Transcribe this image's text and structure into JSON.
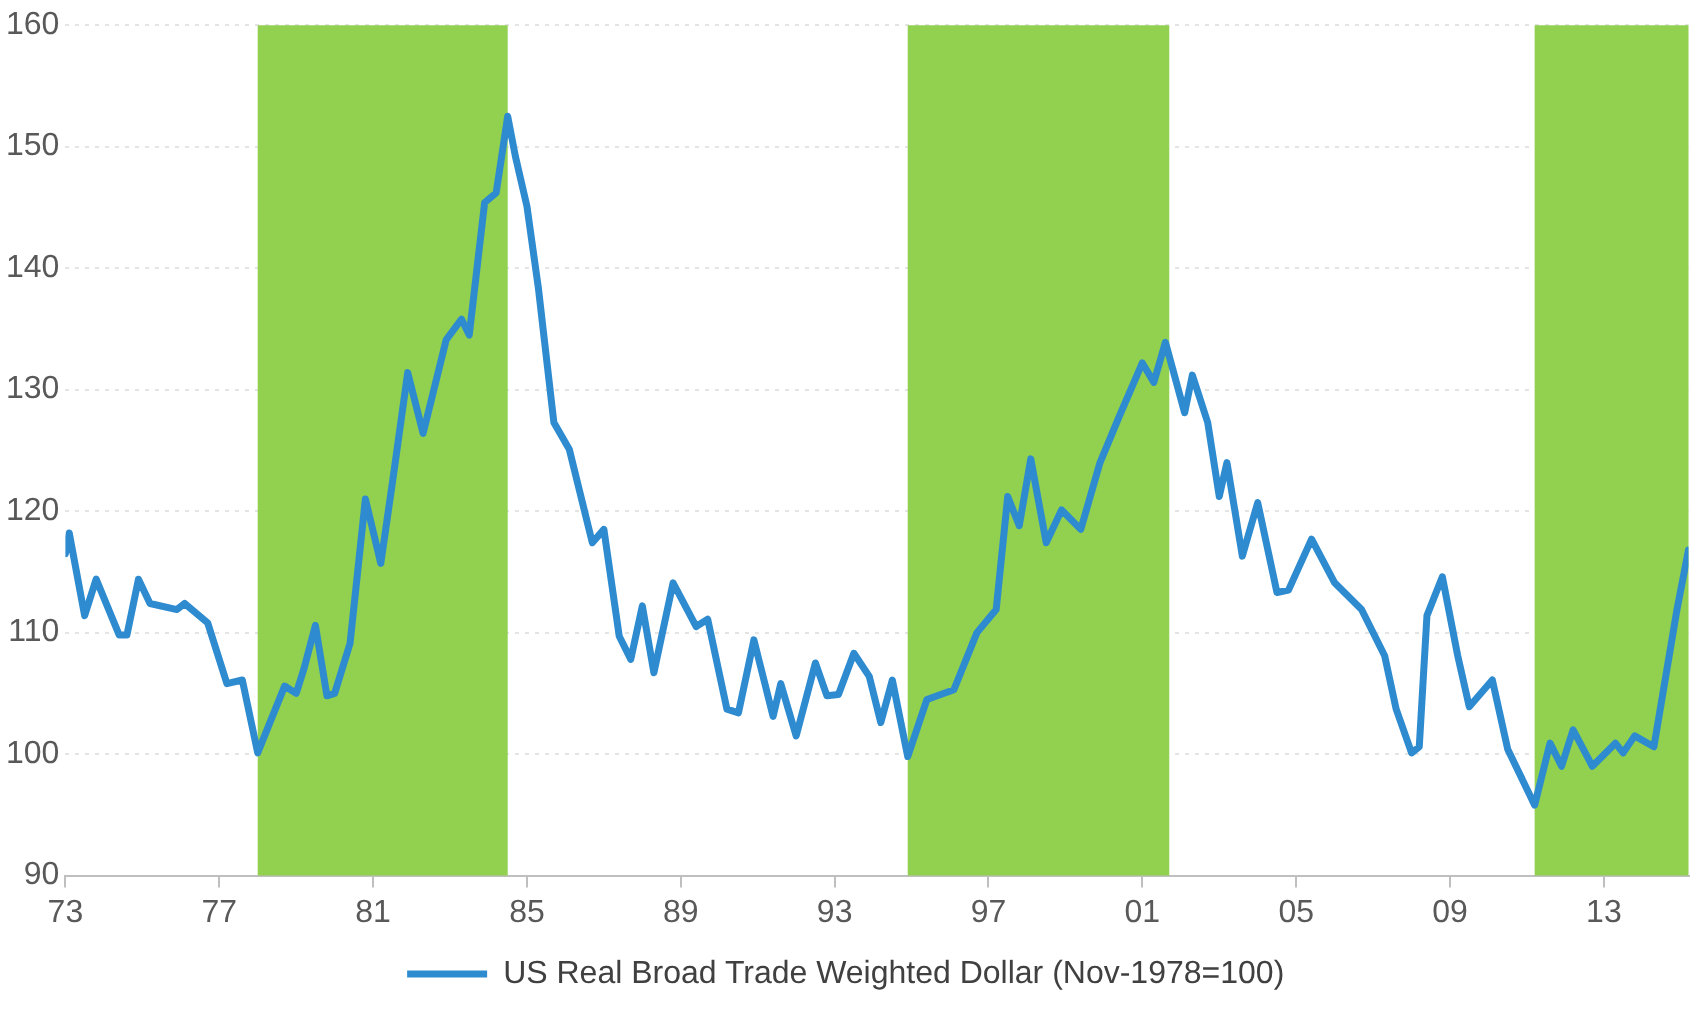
{
  "chart_data": {
    "type": "line",
    "x": [
      1973.0,
      1973.1,
      1973.5,
      1973.8,
      1974.4,
      1974.6,
      1974.9,
      1975.2,
      1975.9,
      1976.1,
      1976.7,
      1977.2,
      1977.6,
      1978.0,
      1978.7,
      1979.0,
      1979.2,
      1979.5,
      1979.8,
      1980.0,
      1980.4,
      1980.8,
      1981.2,
      1981.5,
      1981.9,
      1982.3,
      1982.9,
      1983.3,
      1983.5,
      1983.9,
      1984.2,
      1984.5,
      1984.7,
      1985.0,
      1985.3,
      1985.7,
      1986.1,
      1986.7,
      1987.0,
      1987.4,
      1987.7,
      1988.0,
      1988.3,
      1988.8,
      1989.4,
      1989.7,
      1990.2,
      1990.5,
      1990.9,
      1991.4,
      1991.6,
      1992.0,
      1992.5,
      1992.8,
      1993.1,
      1993.5,
      1993.9,
      1994.2,
      1994.5,
      1994.9,
      1995.4,
      1996.1,
      1996.7,
      1997.2,
      1997.5,
      1997.8,
      1998.1,
      1998.5,
      1998.9,
      1999.4,
      1999.9,
      2000.4,
      2001.0,
      2001.3,
      2001.6,
      2002.1,
      2002.3,
      2002.7,
      2003.0,
      2003.2,
      2003.6,
      2004.0,
      2004.5,
      2004.8,
      2005.4,
      2006.0,
      2006.7,
      2007.3,
      2007.6,
      2008.0,
      2008.2,
      2008.4,
      2008.8,
      2009.2,
      2009.5,
      2010.1,
      2010.5,
      2011.2,
      2011.6,
      2011.9,
      2012.2,
      2012.7,
      2013.3,
      2013.5,
      2013.8,
      2014.3,
      2014.9,
      2015.2
    ],
    "series": [
      {
        "name": "US Real Broad Trade Weighted Dollar (Nov-1978=100)",
        "color": "#2e8bcf",
        "values": [
          116.5,
          118.2,
          111.4,
          114.4,
          109.8,
          109.8,
          114.4,
          112.4,
          111.9,
          112.4,
          110.8,
          105.8,
          106.1,
          100.1,
          105.6,
          105.0,
          107.0,
          110.6,
          104.8,
          105.0,
          109.1,
          121.0,
          115.7,
          122.3,
          131.4,
          126.4,
          134.1,
          135.8,
          134.5,
          145.4,
          146.2,
          152.5,
          149.2,
          145.1,
          138.3,
          127.3,
          125.1,
          117.4,
          118.5,
          109.7,
          107.8,
          112.2,
          106.7,
          114.1,
          110.5,
          111.1,
          103.7,
          103.4,
          109.4,
          103.1,
          105.8,
          101.5,
          107.5,
          104.8,
          104.9,
          108.3,
          106.4,
          102.6,
          106.1,
          99.8,
          104.5,
          105.3,
          110.0,
          111.9,
          121.2,
          118.8,
          124.3,
          117.4,
          120.1,
          118.5,
          124.0,
          127.8,
          132.2,
          130.6,
          133.9,
          128.1,
          131.2,
          127.3,
          121.2,
          124.0,
          116.3,
          120.7,
          113.3,
          113.5,
          117.7,
          114.1,
          111.9,
          108.1,
          103.7,
          100.1,
          100.6,
          111.4,
          114.6,
          108.1,
          103.9,
          106.1,
          100.4,
          95.8,
          100.9,
          99.0,
          102.0,
          99.0,
          100.9,
          100.1,
          101.5,
          100.6,
          111.9,
          116.8
        ]
      }
    ],
    "xlim": [
      1973,
      2015.2
    ],
    "xticks": [
      {
        "value": 1973,
        "label": "73"
      },
      {
        "value": 1977,
        "label": "77"
      },
      {
        "value": 1981,
        "label": "81"
      },
      {
        "value": 1985,
        "label": "85"
      },
      {
        "value": 1989,
        "label": "89"
      },
      {
        "value": 1993,
        "label": "93"
      },
      {
        "value": 1997,
        "label": "97"
      },
      {
        "value": 2001,
        "label": "01"
      },
      {
        "value": 2005,
        "label": "05"
      },
      {
        "value": 2009,
        "label": "09"
      },
      {
        "value": 2013,
        "label": "13"
      }
    ],
    "ylim": [
      90,
      160
    ],
    "yticks": [
      90,
      100,
      110,
      120,
      130,
      140,
      150,
      160
    ],
    "bands": [
      {
        "axis": "x",
        "from": 1978.0,
        "to": 1984.5,
        "color": "#92d050"
      },
      {
        "axis": "x",
        "from": 1994.9,
        "to": 2001.7,
        "color": "#92d050"
      },
      {
        "axis": "x",
        "from": 2011.2,
        "to": 2015.2,
        "color": "#92d050"
      }
    ],
    "grid": "y",
    "legend": "bottom",
    "marker": "none",
    "line_style": "solid"
  }
}
